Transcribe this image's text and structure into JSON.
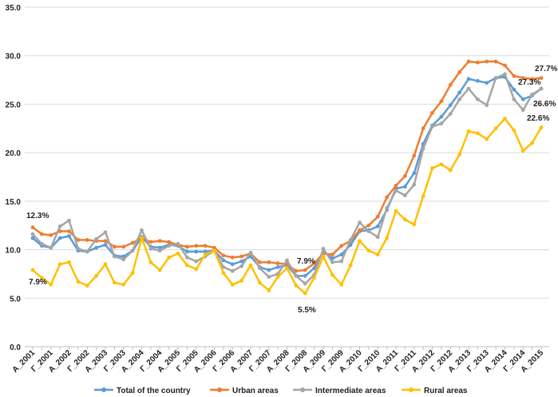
{
  "chart_data": {
    "type": "line",
    "ylim": [
      0,
      35
    ],
    "yticks": [
      "0.0",
      "5.0",
      "10.0",
      "15.0",
      "20.0",
      "25.0",
      "30.0",
      "35.0"
    ],
    "grid": true,
    "legend_position": "bottom",
    "x": [
      "A_2001",
      "",
      "Γ_2001",
      "",
      "A_2002",
      "",
      "Γ_2002",
      "",
      "A_2003",
      "",
      "Γ_2003",
      "",
      "A_2004",
      "",
      "Γ_2004",
      "",
      "A_2005",
      "",
      "Γ_2005",
      "",
      "A_2006",
      "",
      "Γ_2006",
      "",
      "A_2007",
      "",
      "Γ_2007",
      "",
      "A_2008",
      "",
      "Γ_2008",
      "",
      "A_2009",
      "",
      "Γ_2009",
      "",
      "A_2010",
      "",
      "Γ_2010",
      "",
      "A_2011",
      "",
      "Γ_2011",
      "",
      "A_2012",
      "",
      "Γ_2012",
      "",
      "A_2013",
      "",
      "Γ_2013",
      "",
      "A_2014",
      "",
      "Γ_2014",
      "",
      "A_2015"
    ],
    "series": [
      {
        "name": "Total of the country",
        "color": "#5B9BD5",
        "values": [
          11.2,
          10.4,
          10.2,
          11.2,
          11.4,
          9.9,
          9.8,
          10.2,
          10.5,
          9.4,
          9.3,
          9.9,
          11.3,
          10.3,
          10.2,
          10.5,
          10.4,
          9.8,
          9.8,
          9.8,
          9.9,
          8.9,
          8.5,
          8.8,
          9.3,
          8.2,
          7.9,
          8.2,
          8.4,
          7.3,
          7.3,
          8.1,
          9.8,
          9.1,
          9.5,
          10.5,
          11.9,
          12.0,
          12.4,
          14.1,
          16.3,
          16.5,
          17.9,
          20.9,
          22.8,
          23.7,
          24.9,
          26.2,
          27.6,
          27.4,
          27.2,
          27.7,
          27.8,
          26.5,
          25.5,
          25.9,
          26.6
        ]
      },
      {
        "name": "Urban areas",
        "color": "#ED7D31",
        "values": [
          12.3,
          11.6,
          11.5,
          11.9,
          11.9,
          11.0,
          11.0,
          10.9,
          10.9,
          10.3,
          10.3,
          10.7,
          11.2,
          10.8,
          10.9,
          10.8,
          10.5,
          10.3,
          10.4,
          10.4,
          10.2,
          9.4,
          9.2,
          9.3,
          9.6,
          8.7,
          8.7,
          8.6,
          8.5,
          7.8,
          7.9,
          8.6,
          9.6,
          9.5,
          10.4,
          10.9,
          12.0,
          12.5,
          13.4,
          15.4,
          16.6,
          17.6,
          19.7,
          22.5,
          24.1,
          25.3,
          27.0,
          28.3,
          29.4,
          29.3,
          29.4,
          29.4,
          29.0,
          27.9,
          27.7,
          27.6,
          27.7
        ]
      },
      {
        "name": "Intermediate areas",
        "color": "#A5A5A5",
        "values": [
          11.6,
          10.6,
          10.2,
          12.4,
          13.0,
          10.1,
          9.8,
          11.1,
          11.8,
          9.3,
          9.0,
          9.9,
          12.0,
          10.1,
          9.9,
          10.4,
          10.6,
          9.2,
          8.8,
          9.3,
          9.9,
          8.2,
          7.8,
          8.3,
          9.7,
          8.1,
          7.2,
          7.5,
          8.9,
          7.3,
          6.5,
          7.4,
          10.1,
          8.7,
          8.8,
          11.0,
          12.8,
          11.9,
          11.3,
          14.3,
          16.1,
          15.6,
          16.7,
          20.4,
          22.7,
          23.0,
          24.0,
          25.5,
          26.6,
          25.5,
          24.9,
          27.7,
          28.1,
          25.5,
          24.4,
          26.0,
          26.6
        ]
      },
      {
        "name": "Rural areas",
        "color": "#FFC000",
        "values": [
          7.9,
          7.1,
          6.4,
          8.5,
          8.7,
          6.7,
          6.3,
          7.3,
          8.5,
          6.6,
          6.4,
          7.6,
          11.2,
          8.7,
          7.9,
          9.2,
          9.6,
          8.4,
          8.0,
          9.5,
          9.9,
          7.6,
          6.4,
          6.8,
          8.4,
          6.6,
          5.8,
          7.2,
          8.1,
          6.3,
          5.5,
          7.1,
          9.3,
          7.4,
          6.4,
          8.4,
          10.9,
          9.9,
          9.5,
          11.2,
          14.0,
          13.1,
          12.6,
          15.5,
          18.4,
          18.8,
          18.2,
          19.8,
          22.2,
          22.0,
          21.4,
          22.5,
          23.5,
          22.3,
          20.2,
          21.0,
          22.6
        ]
      }
    ],
    "annotations": [
      "12.3%",
      "7.9%",
      "7.9%",
      "5.5%",
      "27.7%",
      "27.3%",
      "26.6%",
      "22.6%"
    ]
  }
}
